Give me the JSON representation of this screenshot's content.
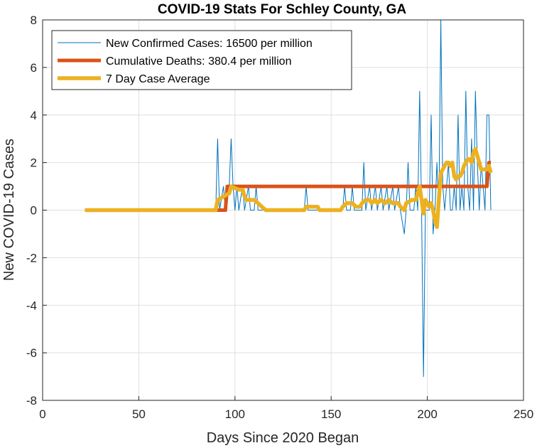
{
  "chart_data": {
    "type": "line",
    "title": "COVID-19 Stats For Schley County, GA",
    "xlabel": "Days Since 2020 Began",
    "ylabel": "New COVID-19 Cases",
    "xlim": [
      0,
      250
    ],
    "ylim": [
      -8,
      8
    ],
    "xticks": [
      0,
      50,
      100,
      150,
      200,
      250
    ],
    "yticks": [
      -8,
      -6,
      -4,
      -2,
      0,
      2,
      4,
      6,
      8
    ],
    "grid": true,
    "legend_position": "top-left",
    "series": [
      {
        "name": "New Confirmed Cases: 16500 per million",
        "color": "#0072BD",
        "points": [
          [
            22,
            0
          ],
          [
            90,
            0
          ],
          [
            91,
            3
          ],
          [
            92,
            0
          ],
          [
            94,
            1
          ],
          [
            95,
            0
          ],
          [
            97,
            1
          ],
          [
            98,
            3
          ],
          [
            99,
            1
          ],
          [
            100,
            0
          ],
          [
            101,
            1
          ],
          [
            102,
            0
          ],
          [
            104,
            1
          ],
          [
            105,
            0
          ],
          [
            107,
            1
          ],
          [
            108,
            0
          ],
          [
            110,
            0
          ],
          [
            111,
            1
          ],
          [
            112,
            0
          ],
          [
            114,
            0
          ],
          [
            136,
            0
          ],
          [
            137,
            1
          ],
          [
            138,
            0
          ],
          [
            156,
            0
          ],
          [
            157,
            1
          ],
          [
            158,
            0
          ],
          [
            160,
            0
          ],
          [
            161,
            1
          ],
          [
            162,
            0
          ],
          [
            166,
            0
          ],
          [
            167,
            2
          ],
          [
            168,
            0
          ],
          [
            170,
            1
          ],
          [
            171,
            0
          ],
          [
            173,
            1
          ],
          [
            174,
            0
          ],
          [
            176,
            1
          ],
          [
            177,
            0
          ],
          [
            179,
            1
          ],
          [
            180,
            0
          ],
          [
            182,
            1
          ],
          [
            183,
            0
          ],
          [
            185,
            1
          ],
          [
            186,
            0
          ],
          [
            188,
            -1
          ],
          [
            189,
            0
          ],
          [
            190,
            2
          ],
          [
            191,
            0
          ],
          [
            193,
            0
          ],
          [
            194,
            1
          ],
          [
            195,
            0
          ],
          [
            196,
            5
          ],
          [
            197,
            0
          ],
          [
            198,
            -7
          ],
          [
            199,
            0
          ],
          [
            201,
            0
          ],
          [
            202,
            4
          ],
          [
            203,
            -1
          ],
          [
            204,
            0
          ],
          [
            205,
            2
          ],
          [
            206,
            0
          ],
          [
            207,
            8
          ],
          [
            208,
            1
          ],
          [
            209,
            0
          ],
          [
            210,
            1
          ],
          [
            211,
            2
          ],
          [
            212,
            0
          ],
          [
            213,
            0
          ],
          [
            214,
            1
          ],
          [
            215,
            0
          ],
          [
            216,
            4
          ],
          [
            217,
            0
          ],
          [
            218,
            1
          ],
          [
            219,
            0
          ],
          [
            220,
            5
          ],
          [
            221,
            1
          ],
          [
            222,
            0
          ],
          [
            223,
            3
          ],
          [
            224,
            0
          ],
          [
            225,
            5
          ],
          [
            226,
            2
          ],
          [
            227,
            0
          ],
          [
            228,
            2
          ],
          [
            229,
            1
          ],
          [
            230,
            0
          ],
          [
            231,
            4
          ],
          [
            232,
            4
          ],
          [
            233,
            0
          ]
        ]
      },
      {
        "name": "Cumulative Deaths: 380.4 per million",
        "color": "#D95319",
        "points": [
          [
            22,
            0
          ],
          [
            95,
            0
          ],
          [
            96,
            1
          ],
          [
            231,
            1
          ],
          [
            232,
            2
          ],
          [
            233,
            2
          ]
        ]
      },
      {
        "name": "7 Day Case Average",
        "color": "#EDB120",
        "points": [
          [
            22,
            0
          ],
          [
            90,
            0
          ],
          [
            91,
            0.43
          ],
          [
            94,
            0.57
          ],
          [
            97,
            0.71
          ],
          [
            98,
            1.0
          ],
          [
            102,
            0.86
          ],
          [
            104,
            0.86
          ],
          [
            105,
            0.57
          ],
          [
            106,
            0.43
          ],
          [
            110,
            0.43
          ],
          [
            112,
            0.29
          ],
          [
            114,
            0.14
          ],
          [
            116,
            0
          ],
          [
            136,
            0
          ],
          [
            137,
            0.14
          ],
          [
            143,
            0.14
          ],
          [
            144,
            0
          ],
          [
            155,
            0
          ],
          [
            156,
            0.14
          ],
          [
            158,
            0.29
          ],
          [
            161,
            0.29
          ],
          [
            163,
            0.14
          ],
          [
            165,
            0.14
          ],
          [
            166,
            0.29
          ],
          [
            168,
            0.43
          ],
          [
            170,
            0.43
          ],
          [
            171,
            0.29
          ],
          [
            173,
            0.43
          ],
          [
            174,
            0.29
          ],
          [
            176,
            0.43
          ],
          [
            178,
            0.29
          ],
          [
            180,
            0.43
          ],
          [
            182,
            0.29
          ],
          [
            185,
            0.29
          ],
          [
            186,
            0.14
          ],
          [
            188,
            0
          ],
          [
            189,
            0.29
          ],
          [
            192,
            0.43
          ],
          [
            194,
            0.43
          ],
          [
            195,
            0.71
          ],
          [
            196,
            1.0
          ],
          [
            197,
            0.43
          ],
          [
            198,
            -0.14
          ],
          [
            199,
            0.43
          ],
          [
            201,
            0.14
          ],
          [
            202,
            0.29
          ],
          [
            203,
            0
          ],
          [
            204,
            -0.43
          ],
          [
            205,
            -0.71
          ],
          [
            206,
            0.43
          ],
          [
            207,
            1.57
          ],
          [
            208,
            1.71
          ],
          [
            209,
            1.86
          ],
          [
            210,
            2.0
          ],
          [
            211,
            2.0
          ],
          [
            212,
            1.86
          ],
          [
            213,
            2.0
          ],
          [
            214,
            1.43
          ],
          [
            215,
            1.29
          ],
          [
            216,
            1.43
          ],
          [
            217,
            1.43
          ],
          [
            218,
            1.57
          ],
          [
            219,
            1.86
          ],
          [
            220,
            2.0
          ],
          [
            221,
            2.14
          ],
          [
            222,
            2.14
          ],
          [
            223,
            2.0
          ],
          [
            224,
            2.43
          ],
          [
            225,
            2.57
          ],
          [
            226,
            2.29
          ],
          [
            227,
            2.0
          ],
          [
            228,
            1.71
          ],
          [
            229,
            1.71
          ],
          [
            230,
            1.71
          ],
          [
            231,
            1.71
          ],
          [
            232,
            1.86
          ],
          [
            233,
            1.57
          ]
        ]
      }
    ]
  }
}
